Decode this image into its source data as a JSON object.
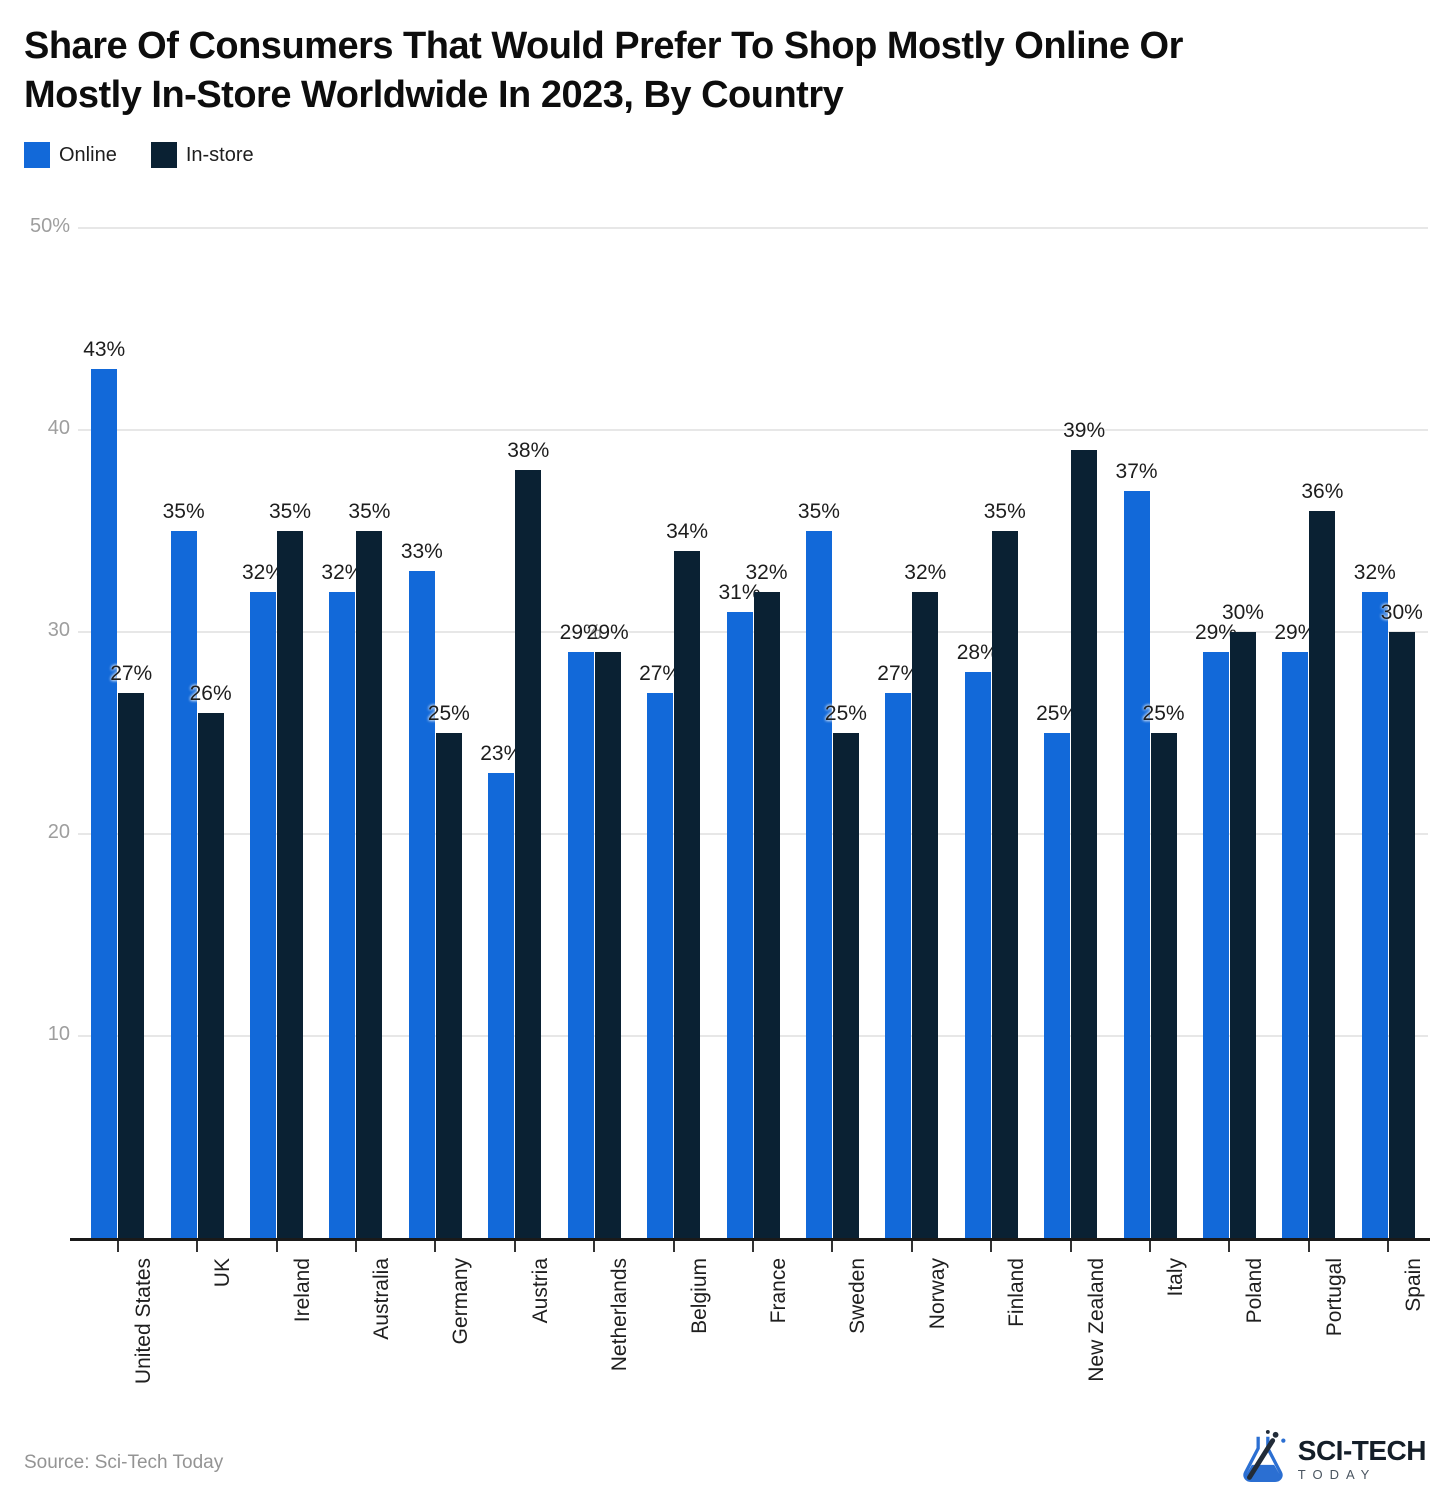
{
  "title": "Share Of Consumers That Would Prefer To Shop Mostly Online Or Mostly In-Store Worldwide In 2023, By Country",
  "legend": [
    {
      "label": "Online",
      "color": "#1269D9"
    },
    {
      "label": "In-store",
      "color": "#0A2133"
    }
  ],
  "source": "Source: Sci-Tech Today",
  "logo": {
    "line1": "SCI-TECH",
    "line2": "TODAY"
  },
  "chart_data": {
    "type": "bar",
    "title": "Share Of Consumers That Would Prefer To Shop Mostly Online Or Mostly In-Store Worldwide In 2023, By Country",
    "categories": [
      "United States",
      "UK",
      "Ireland",
      "Australia",
      "Germany",
      "Austria",
      "Netherlands",
      "Belgium",
      "France",
      "Sweden",
      "Norway",
      "Finland",
      "New Zealand",
      "Italy",
      "Poland",
      "Portugal",
      "Spain"
    ],
    "series": [
      {
        "name": "Online",
        "color": "#1269D9",
        "values": [
          43,
          35,
          32,
          32,
          33,
          23,
          29,
          27,
          31,
          35,
          27,
          28,
          25,
          37,
          29,
          29,
          32
        ]
      },
      {
        "name": "In-store",
        "color": "#0A2133",
        "values": [
          27,
          26,
          35,
          35,
          25,
          38,
          29,
          34,
          32,
          25,
          32,
          35,
          39,
          25,
          30,
          36,
          30
        ]
      }
    ],
    "value_suffix": "%",
    "ylim": [
      0,
      50
    ],
    "yticks": [
      {
        "value": 50,
        "label": "50%"
      },
      {
        "value": 40,
        "label": "40"
      },
      {
        "value": 30,
        "label": "30"
      },
      {
        "value": 20,
        "label": "20"
      },
      {
        "value": 10,
        "label": "10"
      }
    ],
    "grid": true,
    "legend_position": "top-left"
  }
}
